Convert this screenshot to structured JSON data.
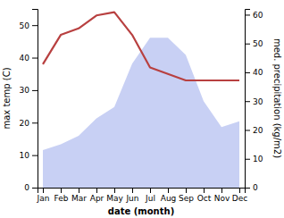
{
  "chart_data": {
    "type": "line",
    "categories": [
      "Jan",
      "Feb",
      "Mar",
      "Apr",
      "May",
      "Jun",
      "Jul",
      "Aug",
      "Sep",
      "Oct",
      "Nov",
      "Dec"
    ],
    "xlabel": "date (month)",
    "ylabel": "max temp (C)",
    "y2label": "med. precipitation (kg/m2)",
    "series": [
      {
        "type": "area",
        "color": "#c8d0f4",
        "axis": "y2",
        "values": [
          13,
          15,
          18,
          24,
          28,
          43,
          52,
          52,
          46,
          30,
          21,
          23
        ]
      },
      {
        "type": "line",
        "color": "#b84040",
        "values": [
          38,
          47,
          49,
          53,
          54,
          47,
          37,
          35,
          33,
          33,
          33,
          33
        ]
      }
    ],
    "ylim": [
      0,
      55
    ],
    "yticks": [
      0,
      10,
      20,
      30,
      40,
      50
    ],
    "y2lim": [
      0,
      62
    ],
    "y2ticks": [
      0,
      10,
      20,
      30,
      40,
      50,
      60
    ],
    "grid": false
  }
}
